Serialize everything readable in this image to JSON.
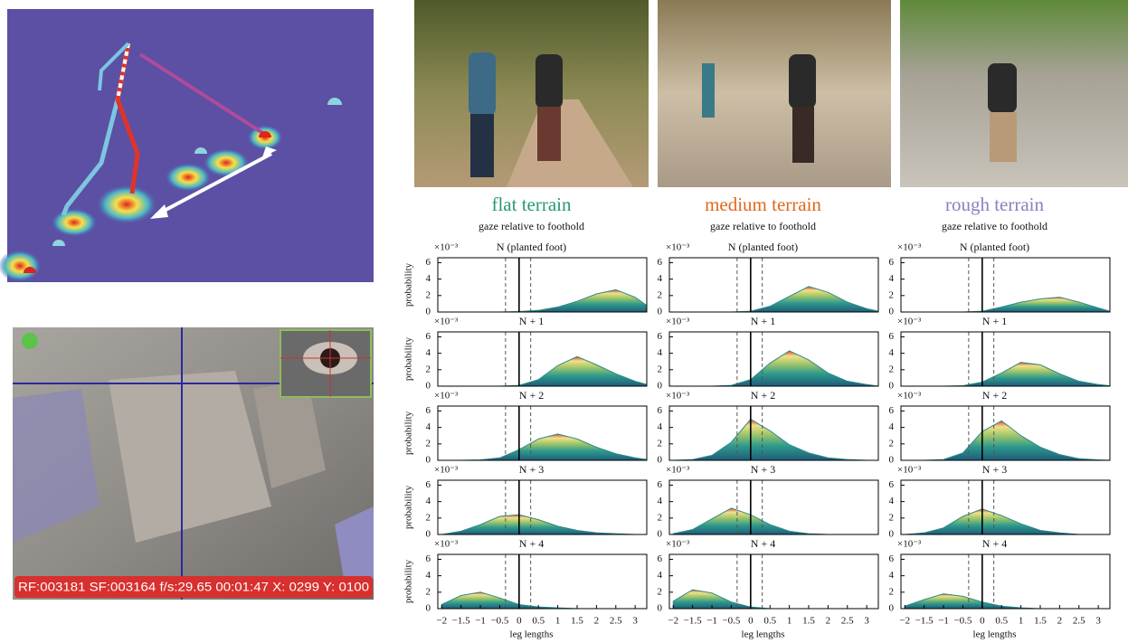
{
  "figure": {
    "hud": "RF:003181 SF:003164 f/s:29.65 00:01:47 X: 0299 Y: 0100",
    "columns": [
      {
        "title": "flat terrain",
        "subtitle": "gaze relative to foothold",
        "color": "#2a9a70"
      },
      {
        "title": "medium terrain",
        "subtitle": "gaze relative to foothold",
        "color": "#e0671c"
      },
      {
        "title": "rough terrain",
        "subtitle": "gaze relative to foothold",
        "color": "#8a7fc2"
      }
    ]
  },
  "chart_data": [
    {
      "type": "area",
      "title": "N (planted foot)",
      "y_multiplier": "×10⁻³",
      "ylabel": "probability",
      "x": [
        -2,
        -1.5,
        -1,
        -0.5,
        0,
        0.5,
        1,
        1.5,
        2,
        2.5,
        3,
        3.3
      ],
      "values": [
        0,
        0,
        0,
        0,
        0.05,
        0.2,
        0.6,
        1.3,
        2.2,
        2.7,
        1.8,
        0.8
      ],
      "xlim": [
        -2.1,
        3.3
      ],
      "ylim": [
        0,
        6.6
      ],
      "yticks": [
        0,
        2,
        4,
        6
      ],
      "vlines": [
        {
          "value": -0.35,
          "style": "dashed"
        },
        {
          "value": 0,
          "style": "solid"
        },
        {
          "value": 0.3,
          "style": "dashed"
        }
      ],
      "color": "#2e8a8c"
    },
    {
      "type": "area",
      "title": "N + 1",
      "y_multiplier": "×10⁻³",
      "ylabel": "probability",
      "x": [
        -2,
        -1.5,
        -1,
        -0.5,
        0,
        0.5,
        1,
        1.5,
        2,
        2.5,
        3,
        3.3
      ],
      "values": [
        0,
        0,
        0,
        0,
        0.1,
        0.8,
        2.5,
        3.6,
        2.6,
        1.5,
        0.6,
        0.2
      ],
      "xlim": [
        -2.1,
        3.3
      ],
      "ylim": [
        0,
        6.6
      ],
      "yticks": [
        0,
        2,
        4,
        6
      ],
      "vlines": [
        {
          "value": -0.35,
          "style": "dashed"
        },
        {
          "value": 0,
          "style": "solid"
        },
        {
          "value": 0.3,
          "style": "dashed"
        }
      ],
      "color": "#2e8a8c"
    },
    {
      "type": "area",
      "title": "N + 2",
      "y_multiplier": "×10⁻³",
      "ylabel": "probability",
      "x": [
        -2,
        -1.5,
        -1,
        -0.5,
        0,
        0.5,
        1,
        1.5,
        2,
        2.5,
        3,
        3.3
      ],
      "values": [
        0,
        0,
        0.05,
        0.3,
        1.3,
        2.6,
        3.2,
        2.6,
        1.6,
        0.8,
        0.3,
        0.1
      ],
      "xlim": [
        -2.1,
        3.3
      ],
      "ylim": [
        0,
        6.6
      ],
      "yticks": [
        0,
        2,
        4,
        6
      ],
      "vlines": [
        {
          "value": -0.35,
          "style": "dashed"
        },
        {
          "value": 0,
          "style": "solid"
        },
        {
          "value": 0.3,
          "style": "dashed"
        }
      ],
      "color": "#2e8a8c"
    },
    {
      "type": "area",
      "title": "N + 3",
      "y_multiplier": "×10⁻³",
      "ylabel": "probability",
      "x": [
        -2,
        -1.5,
        -1,
        -0.5,
        0,
        0.5,
        1,
        1.5,
        2,
        2.5,
        3,
        3.3
      ],
      "values": [
        0,
        0.4,
        1.2,
        2.2,
        2.4,
        1.8,
        1,
        0.5,
        0.2,
        0.1,
        0,
        0
      ],
      "xlim": [
        -2.1,
        3.3
      ],
      "ylim": [
        0,
        6.6
      ],
      "yticks": [
        0,
        2,
        4,
        6
      ],
      "vlines": [
        {
          "value": -0.35,
          "style": "dashed"
        },
        {
          "value": 0,
          "style": "solid"
        },
        {
          "value": 0.3,
          "style": "dashed"
        }
      ],
      "color": "#2e8a8c"
    },
    {
      "type": "area",
      "title": "N + 4",
      "y_multiplier": "×10⁻³",
      "ylabel": "probability",
      "xlabel": "leg lengths",
      "x": [
        -2,
        -1.5,
        -1,
        -0.5,
        0,
        0.5,
        1,
        1.5,
        2,
        2.5,
        3,
        3.3
      ],
      "values": [
        0.5,
        1.6,
        2,
        1.3,
        0.5,
        0.2,
        0.1,
        0,
        0,
        0,
        0,
        0
      ],
      "xlim": [
        -2.1,
        3.3
      ],
      "ylim": [
        0,
        6.6
      ],
      "yticks": [
        0,
        2,
        4,
        6
      ],
      "xticks": [
        {
          "value": -2,
          "label": "−2"
        },
        {
          "value": -1.5,
          "label": "−1.5"
        },
        {
          "value": -1,
          "label": "−1"
        },
        {
          "value": -0.5,
          "label": "−0.5"
        },
        0,
        0.5,
        1,
        1.5,
        2,
        2.5,
        3
      ],
      "vlines": [
        {
          "value": -0.35,
          "style": "dashed"
        },
        {
          "value": 0,
          "style": "solid"
        },
        {
          "value": 0.3,
          "style": "dashed"
        }
      ],
      "color": "#2e8a8c"
    },
    {
      "type": "area",
      "title": "N (planted foot)",
      "y_multiplier": "×10⁻³",
      "x": [
        -2,
        -1.5,
        -1,
        -0.5,
        0,
        0.5,
        1,
        1.5,
        2,
        2.5,
        3,
        3.3
      ],
      "values": [
        0,
        0,
        0,
        0,
        0.1,
        0.7,
        1.9,
        3.1,
        2.4,
        1.2,
        0.4,
        0.1
      ],
      "xlim": [
        -2.1,
        3.3
      ],
      "ylim": [
        0,
        6.6
      ],
      "yticks": [
        0,
        2,
        4,
        6
      ],
      "vlines": [
        {
          "value": -0.35,
          "style": "dashed"
        },
        {
          "value": 0,
          "style": "solid"
        },
        {
          "value": 0.3,
          "style": "dashed"
        }
      ],
      "color": "#2e8a8c"
    },
    {
      "type": "area",
      "title": "N + 1",
      "y_multiplier": "×10⁻³",
      "x": [
        -2,
        -1.5,
        -1,
        -0.5,
        0,
        0.5,
        1,
        1.5,
        2,
        2.5,
        3,
        3.3
      ],
      "values": [
        0,
        0,
        0,
        0.1,
        0.8,
        2.8,
        4.3,
        3.2,
        1.6,
        0.6,
        0.2,
        0
      ],
      "xlim": [
        -2.1,
        3.3
      ],
      "ylim": [
        0,
        6.6
      ],
      "yticks": [
        0,
        2,
        4,
        6
      ],
      "vlines": [
        {
          "value": -0.35,
          "style": "dashed"
        },
        {
          "value": 0,
          "style": "solid"
        },
        {
          "value": 0.3,
          "style": "dashed"
        }
      ],
      "color": "#2e8a8c"
    },
    {
      "type": "area",
      "title": "N + 2",
      "y_multiplier": "×10⁻³",
      "x": [
        -2,
        -1.5,
        -1,
        -0.5,
        0,
        0.5,
        1,
        1.5,
        2,
        2.5,
        3,
        3.3
      ],
      "values": [
        0,
        0.1,
        0.6,
        2.2,
        5,
        3.6,
        1.9,
        0.9,
        0.3,
        0.1,
        0,
        0
      ],
      "xlim": [
        -2.1,
        3.3
      ],
      "ylim": [
        0,
        6.6
      ],
      "yticks": [
        0,
        2,
        4,
        6
      ],
      "vlines": [
        {
          "value": -0.35,
          "style": "dashed"
        },
        {
          "value": 0,
          "style": "solid"
        },
        {
          "value": 0.3,
          "style": "dashed"
        }
      ],
      "color": "#2e8a8c"
    },
    {
      "type": "area",
      "title": "N + 3",
      "y_multiplier": "×10⁻³",
      "x": [
        -2,
        -1.5,
        -1,
        -0.5,
        0,
        0.5,
        1,
        1.5,
        2,
        2.5,
        3,
        3.3
      ],
      "values": [
        0.1,
        0.6,
        1.9,
        3.2,
        2.4,
        1.2,
        0.4,
        0.1,
        0,
        0,
        0,
        0
      ],
      "xlim": [
        -2.1,
        3.3
      ],
      "ylim": [
        0,
        6.6
      ],
      "yticks": [
        0,
        2,
        4,
        6
      ],
      "vlines": [
        {
          "value": -0.35,
          "style": "dashed"
        },
        {
          "value": 0,
          "style": "solid"
        },
        {
          "value": 0.3,
          "style": "dashed"
        }
      ],
      "color": "#2e8a8c"
    },
    {
      "type": "area",
      "title": "N + 4",
      "y_multiplier": "×10⁻³",
      "xlabel": "leg lengths",
      "x": [
        -2,
        -1.5,
        -1,
        -0.5,
        0,
        0.5,
        1,
        1.5,
        2,
        2.5,
        3,
        3.3
      ],
      "values": [
        0.9,
        2.3,
        1.9,
        0.8,
        0.2,
        0,
        0,
        0,
        0,
        0,
        0,
        0
      ],
      "xlim": [
        -2.1,
        3.3
      ],
      "ylim": [
        0,
        6.6
      ],
      "yticks": [
        0,
        2,
        4,
        6
      ],
      "xticks": [
        {
          "value": -2,
          "label": "−2"
        },
        {
          "value": -1.5,
          "label": "−1.5"
        },
        {
          "value": -1,
          "label": "−1"
        },
        {
          "value": -0.5,
          "label": "−0.5"
        },
        0,
        0.5,
        1,
        1.5,
        2,
        2.5,
        3
      ],
      "vlines": [
        {
          "value": -0.35,
          "style": "dashed"
        },
        {
          "value": 0,
          "style": "solid"
        },
        {
          "value": 0.3,
          "style": "dashed"
        }
      ],
      "color": "#2e8a8c"
    },
    {
      "type": "area",
      "title": "N (planted foot)",
      "y_multiplier": "×10⁻³",
      "x": [
        -2,
        -1.5,
        -1,
        -0.5,
        0,
        0.5,
        1,
        1.5,
        2,
        2.5,
        3,
        3.3
      ],
      "values": [
        0,
        0,
        0,
        0,
        0.1,
        0.6,
        1.2,
        1.6,
        1.8,
        1.2,
        0.5,
        0.1
      ],
      "xlim": [
        -2.1,
        3.3
      ],
      "ylim": [
        0,
        6.6
      ],
      "yticks": [
        0,
        2,
        4,
        6
      ],
      "vlines": [
        {
          "value": -0.35,
          "style": "dashed"
        },
        {
          "value": 0,
          "style": "solid"
        },
        {
          "value": 0.3,
          "style": "dashed"
        }
      ],
      "color": "#2e8a8c"
    },
    {
      "type": "area",
      "title": "N + 1",
      "y_multiplier": "×10⁻³",
      "x": [
        -2,
        -1.5,
        -1,
        -0.5,
        0,
        0.5,
        1,
        1.5,
        2,
        2.5,
        3,
        3.3
      ],
      "values": [
        0,
        0,
        0,
        0.05,
        0.5,
        1.6,
        2.9,
        2.6,
        1.5,
        0.6,
        0.2,
        0.05
      ],
      "xlim": [
        -2.1,
        3.3
      ],
      "ylim": [
        0,
        6.6
      ],
      "yticks": [
        0,
        2,
        4,
        6
      ],
      "vlines": [
        {
          "value": -0.35,
          "style": "dashed"
        },
        {
          "value": 0,
          "style": "solid"
        },
        {
          "value": 0.3,
          "style": "dashed"
        }
      ],
      "color": "#2e8a8c"
    },
    {
      "type": "area",
      "title": "N + 2",
      "y_multiplier": "×10⁻³",
      "x": [
        -2,
        -1.5,
        -1,
        -0.5,
        0,
        0.5,
        1,
        1.5,
        2,
        2.5,
        3,
        3.3
      ],
      "values": [
        0,
        0,
        0.1,
        0.9,
        3.5,
        4.8,
        3,
        1.6,
        0.7,
        0.2,
        0.05,
        0
      ],
      "xlim": [
        -2.1,
        3.3
      ],
      "ylim": [
        0,
        6.6
      ],
      "yticks": [
        0,
        2,
        4,
        6
      ],
      "vlines": [
        {
          "value": -0.35,
          "style": "dashed"
        },
        {
          "value": 0,
          "style": "solid"
        },
        {
          "value": 0.3,
          "style": "dashed"
        }
      ],
      "color": "#2e8a8c"
    },
    {
      "type": "area",
      "title": "N + 3",
      "y_multiplier": "×10⁻³",
      "x": [
        -2,
        -1.5,
        -1,
        -0.5,
        0,
        0.5,
        1,
        1.5,
        2,
        2.5,
        3,
        3.3
      ],
      "values": [
        0,
        0.2,
        0.8,
        2.2,
        3.1,
        2.3,
        1.3,
        0.5,
        0.2,
        0,
        0,
        0
      ],
      "xlim": [
        -2.1,
        3.3
      ],
      "ylim": [
        0,
        6.6
      ],
      "yticks": [
        0,
        2,
        4,
        6
      ],
      "vlines": [
        {
          "value": -0.35,
          "style": "dashed"
        },
        {
          "value": 0,
          "style": "solid"
        },
        {
          "value": 0.3,
          "style": "dashed"
        }
      ],
      "color": "#2e8a8c"
    },
    {
      "type": "area",
      "title": "N + 4",
      "y_multiplier": "×10⁻³",
      "xlabel": "leg lengths",
      "x": [
        -2,
        -1.5,
        -1,
        -0.5,
        0,
        0.5,
        1,
        1.5,
        2,
        2.5,
        3,
        3.3
      ],
      "values": [
        0.3,
        1.1,
        1.8,
        1.5,
        0.8,
        0.3,
        0.1,
        0,
        0,
        0,
        0,
        0
      ],
      "xlim": [
        -2.1,
        3.3
      ],
      "ylim": [
        0,
        6.6
      ],
      "yticks": [
        0,
        2,
        4,
        6
      ],
      "xticks": [
        {
          "value": -2,
          "label": "−2"
        },
        {
          "value": -1.5,
          "label": "−1.5"
        },
        {
          "value": -1,
          "label": "−1"
        },
        {
          "value": -0.5,
          "label": "−0.5"
        },
        0,
        0.5,
        1,
        1.5,
        2,
        2.5,
        3
      ],
      "vlines": [
        {
          "value": -0.35,
          "style": "dashed"
        },
        {
          "value": 0,
          "style": "solid"
        },
        {
          "value": 0.3,
          "style": "dashed"
        }
      ],
      "color": "#2e8a8c"
    }
  ]
}
